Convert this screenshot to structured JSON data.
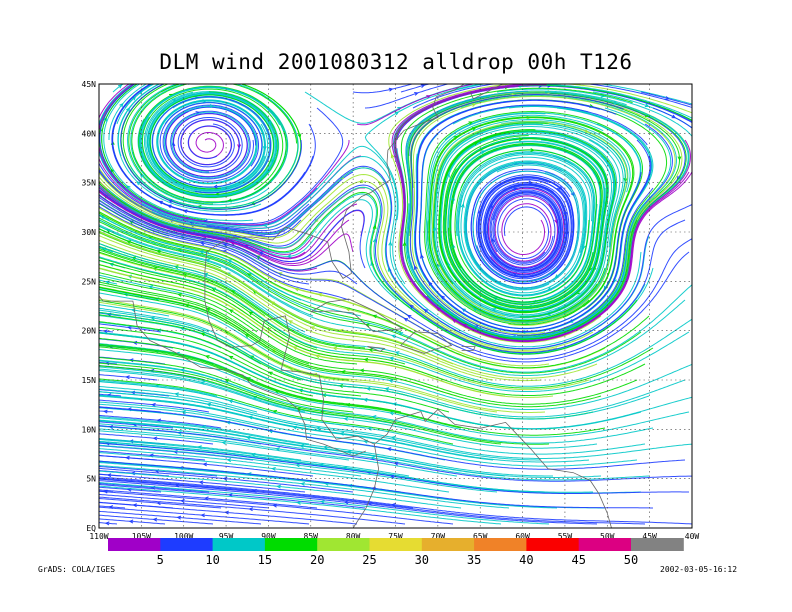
{
  "title": "DLM wind 2001080312 alldrop 00h T126",
  "footer": {
    "left": "GrADS: COLA/IGES",
    "right": "2002-03-05-16:12"
  },
  "map": {
    "lon_range": [
      -110,
      -40
    ],
    "lat_range": [
      0,
      45
    ],
    "lat_labels": [
      "EQ",
      "5N",
      "10N",
      "15N",
      "20N",
      "25N",
      "30N",
      "35N",
      "40N",
      "45N"
    ],
    "lon_labels": [
      "110W",
      "105W",
      "100W",
      "95W",
      "90W",
      "85W",
      "80W",
      "75W",
      "70W",
      "65W",
      "60W",
      "55W",
      "50W",
      "45W",
      "40W"
    ],
    "grid": "dashed"
  },
  "colorbar": {
    "colors": [
      "#a000c8",
      "#1e3cff",
      "#00c8c8",
      "#00dc00",
      "#a0e632",
      "#e6dc32",
      "#e6af2d",
      "#f08228",
      "#fa0000",
      "#dc0082",
      "#828282"
    ],
    "labels": [
      "5",
      "10",
      "15",
      "20",
      "25",
      "30",
      "35",
      "40",
      "45",
      "50"
    ]
  },
  "features": {
    "anticyclone_centers": [
      {
        "lon": -97.5,
        "lat": 38.5
      },
      {
        "lon": -60,
        "lat": 26.5
      },
      {
        "lon": -84,
        "lat": 20.5
      },
      {
        "lon": -89,
        "lat": 27
      }
    ],
    "cyclone_centers": [
      {
        "lon": -76,
        "lat": 33.5
      },
      {
        "lon": -46,
        "lat": 30
      }
    ]
  }
}
